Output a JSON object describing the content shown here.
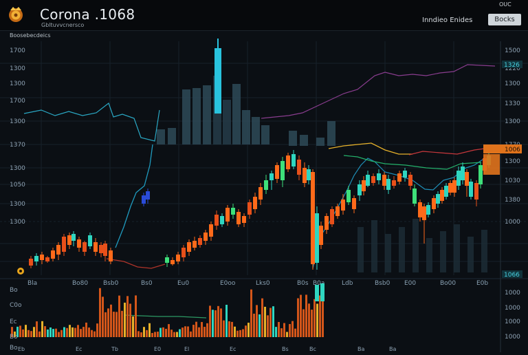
{
  "app": {
    "title": "Corona .1068",
    "subtitle": "Gbltuvvcnersco",
    "sublabel": "Boosebecdeics",
    "right_info": "Inndieo Enides",
    "top_mini": "OUC",
    "button_label": "Bocks"
  },
  "icons": {
    "logo": "crown-badge-icon"
  },
  "colors": {
    "background": "#0b0f14",
    "up": "#2fd6c0",
    "down": "#ff6a1a",
    "accent": "#1fb6d8"
  },
  "axes": {
    "left_price_ticks": [
      "1700",
      "1300",
      "1300",
      "1700",
      "1300",
      "1370",
      "1300",
      "1050",
      "1300",
      "1300"
    ],
    "right_price_ticks": [
      "1500",
      "1220",
      "1300",
      "1330",
      "1300",
      "1770",
      "1300",
      "1030",
      "1380",
      "1000"
    ],
    "right_badges": [
      "1326",
      "1066"
    ],
    "orange_badge": "1006",
    "time_ticks": [
      "Bla",
      "Bo80",
      "Bsb0",
      "Bs0",
      "Eu0",
      "E0oo",
      "Lks0",
      "B0s",
      "B0a",
      "Ldb",
      "Bsb0",
      "E00",
      "Bo00",
      "E0b"
    ],
    "bottom_ticks": [
      "Eb",
      "Ec",
      "Tb",
      "E0",
      "El",
      "Ec",
      "Bs",
      "Bc",
      "Ba",
      "Ba"
    ],
    "sub_left_ticks": [
      "Bo",
      "C0o",
      "Ec",
      "Bo",
      "Bo"
    ],
    "sub_right_ticks": [
      "1000",
      "1000",
      "1000",
      "1000"
    ]
  }
}
